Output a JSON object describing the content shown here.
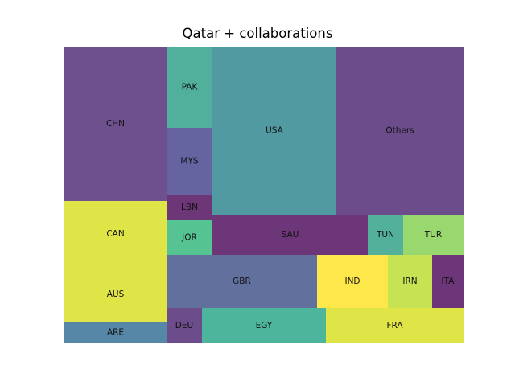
{
  "chart_data": {
    "type": "treemap",
    "title": "Qatar + collaborations",
    "items": [
      {
        "label": "CHN",
        "value": 18.5,
        "color": "#6f508e"
      },
      {
        "label": "CAN",
        "value": 11.0,
        "color": "#dfe546"
      },
      {
        "label": "AUS",
        "value": 7.0,
        "color": "#dfe546"
      },
      {
        "label": "ARE",
        "value": 2.6,
        "color": "#5687a7"
      },
      {
        "label": "PAK",
        "value": 4.4,
        "color": "#50b09b"
      },
      {
        "label": "MYS",
        "value": 3.6,
        "color": "#6563a0"
      },
      {
        "label": "LBN",
        "value": 1.4,
        "color": "#6c3677"
      },
      {
        "label": "JOR",
        "value": 1.9,
        "color": "#55c492"
      },
      {
        "label": "USA",
        "value": 24.1,
        "color": "#529aa1"
      },
      {
        "label": "Others",
        "value": 24.9,
        "color": "#6c4c8b"
      },
      {
        "label": "SAU",
        "value": 7.4,
        "color": "#6c3678"
      },
      {
        "label": "TUN",
        "value": 1.7,
        "color": "#52b09b"
      },
      {
        "label": "TUR",
        "value": 2.9,
        "color": "#98d86f"
      },
      {
        "label": "GBR",
        "value": 9.7,
        "color": "#62709e"
      },
      {
        "label": "IND",
        "value": 4.6,
        "color": "#fde74b"
      },
      {
        "label": "IRN",
        "value": 2.7,
        "color": "#c5e352"
      },
      {
        "label": "ITA",
        "value": 1.9,
        "color": "#6c3678"
      },
      {
        "label": "DEU",
        "value": 1.5,
        "color": "#6c4c8b"
      },
      {
        "label": "EGY",
        "value": 5.2,
        "color": "#4eb59d"
      },
      {
        "label": "FRA",
        "value": 5.8,
        "color": "#dfe546"
      }
    ]
  }
}
